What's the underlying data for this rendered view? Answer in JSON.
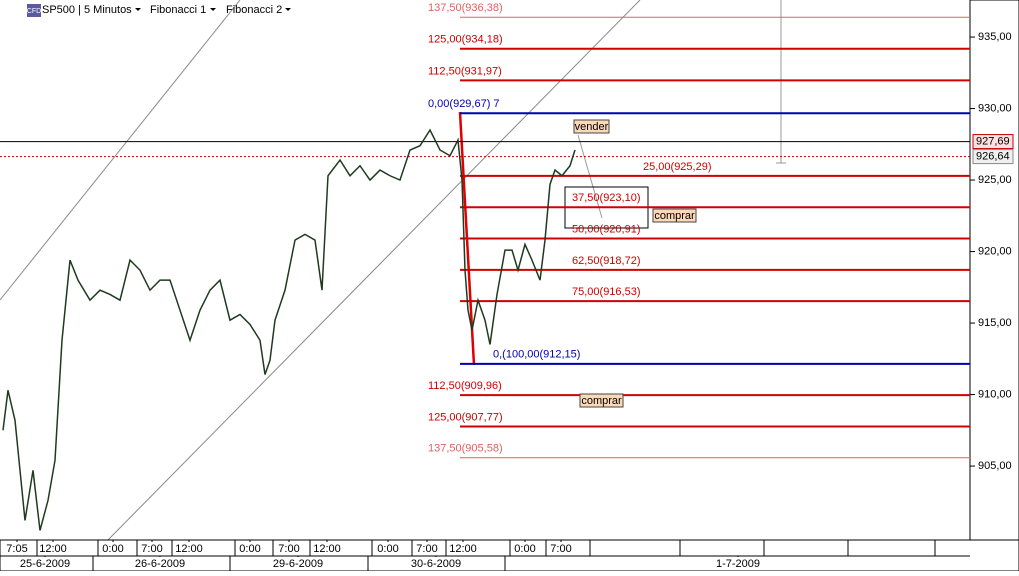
{
  "toolbar": {
    "badge": "CFD",
    "symbol": "SP500 | 5 Minutos",
    "menus": [
      "Fibonacci 1",
      "Fibonacci 2"
    ]
  },
  "chart_data": {
    "type": "line",
    "color": "#1f3a1f",
    "x": [
      3,
      8,
      15,
      20,
      25,
      33,
      40,
      48,
      55,
      62,
      70,
      78,
      90,
      100,
      110,
      120,
      130,
      140,
      150,
      160,
      170,
      180,
      190,
      200,
      210,
      220,
      230,
      240,
      250,
      260,
      265,
      270,
      275,
      285,
      295,
      305,
      315,
      322,
      328,
      340,
      350,
      360,
      370,
      380,
      390,
      400,
      410,
      420,
      430,
      440,
      450,
      458,
      462,
      465,
      468,
      472,
      478,
      485,
      490,
      497,
      505,
      512,
      518,
      525,
      532,
      540,
      545,
      550,
      555,
      562,
      570,
      575
    ],
    "values": [
      907.5,
      910.3,
      908.2,
      904.7,
      901.2,
      904.7,
      900.5,
      902.6,
      905.4,
      913.8,
      919.4,
      918.0,
      916.6,
      917.3,
      917.0,
      916.6,
      919.4,
      918.7,
      917.3,
      918.0,
      918.0,
      915.9,
      913.8,
      915.9,
      917.3,
      918.0,
      915.2,
      915.6,
      914.9,
      913.8,
      911.4,
      912.4,
      915.2,
      917.3,
      920.8,
      921.2,
      920.8,
      917.3,
      925.3,
      926.4,
      925.3,
      926.0,
      925.0,
      925.7,
      925.3,
      925.0,
      927.1,
      927.4,
      928.5,
      927.1,
      926.7,
      927.8,
      925.0,
      918.7,
      915.9,
      914.5,
      916.6,
      915.2,
      913.5,
      917.0,
      920.1,
      920.1,
      918.7,
      920.5,
      919.4,
      918.0,
      920.8,
      924.7,
      925.7,
      925.3,
      926.0,
      927.1
    ],
    "xlim": [
      0,
      970
    ],
    "ylim": [
      899.83,
      937.59
    ],
    "grid": false,
    "yticks": [
      {
        "value": 905,
        "label": "905,00"
      },
      {
        "value": 910,
        "label": "910,00"
      },
      {
        "value": 915,
        "label": "915,00"
      },
      {
        "value": 920,
        "label": "920,00"
      },
      {
        "value": 925,
        "label": "925,00"
      },
      {
        "value": 930,
        "label": "930,00"
      },
      {
        "value": 935,
        "label": "935,00"
      }
    ],
    "xticks": [
      {
        "value": 17,
        "label": "7:05"
      },
      {
        "value": 53,
        "label": "12:00"
      },
      {
        "value": 113,
        "label": "0:00"
      },
      {
        "value": 152,
        "label": "7:00"
      },
      {
        "value": 189,
        "label": "12:00"
      },
      {
        "value": 250,
        "label": "0:00"
      },
      {
        "value": 289,
        "label": "7:00"
      },
      {
        "value": 327,
        "label": "12:00"
      },
      {
        "value": 388,
        "label": "0:00"
      },
      {
        "value": 427,
        "label": "7:00"
      },
      {
        "value": 463,
        "label": "12:00"
      },
      {
        "value": 525,
        "label": "0:00"
      },
      {
        "value": 561,
        "label": "7:00"
      }
    ],
    "date_ticks": [
      {
        "value": 45,
        "label": "25-6-2009"
      },
      {
        "value": 160,
        "label": "26-6-2009"
      },
      {
        "value": 298,
        "label": "29-6-2009"
      },
      {
        "value": 436,
        "label": "30-6-2009"
      },
      {
        "value": 738,
        "label": "1-7-2009"
      }
    ],
    "fib_levels": [
      {
        "value": 936.38,
        "label": "137,50(936,38)",
        "color": "#e06060"
      },
      {
        "value": 934.18,
        "label": "125,00(934,18)",
        "color": "#d00000"
      },
      {
        "value": 931.97,
        "label": "112,50(931,97)",
        "color": "#d00000"
      },
      {
        "value": 929.67,
        "label": "0,00(929,67) 7",
        "color": "#0000b0"
      },
      {
        "value": 925.29,
        "label": "25,00(925,29)",
        "color": "#d00000"
      },
      {
        "value": 923.1,
        "label": "37,50(923,10)",
        "color": "#d00000"
      },
      {
        "value": 920.91,
        "label": "50,00(920,91)",
        "color": "#d00000"
      },
      {
        "value": 918.72,
        "label": "62,50(918,72)",
        "color": "#d00000"
      },
      {
        "value": 916.53,
        "label": "75,00(916,53)",
        "color": "#d00000"
      },
      {
        "value": 912.15,
        "label": "0,(100,00(912,15)",
        "color": "#0000b0"
      },
      {
        "value": 909.96,
        "label": "112,50(909,96)",
        "color": "#d00000"
      },
      {
        "value": 907.77,
        "label": "125,00(907,77)",
        "color": "#d00000"
      },
      {
        "value": 905.58,
        "label": "137,50(905,58)",
        "color": "#e06060"
      }
    ],
    "price_markers": [
      {
        "value": 927.69,
        "label": "927,69"
      },
      {
        "value": 926.64,
        "label": "926,64"
      }
    ],
    "annotations": [
      "vender",
      "comprar",
      "comprar"
    ]
  }
}
